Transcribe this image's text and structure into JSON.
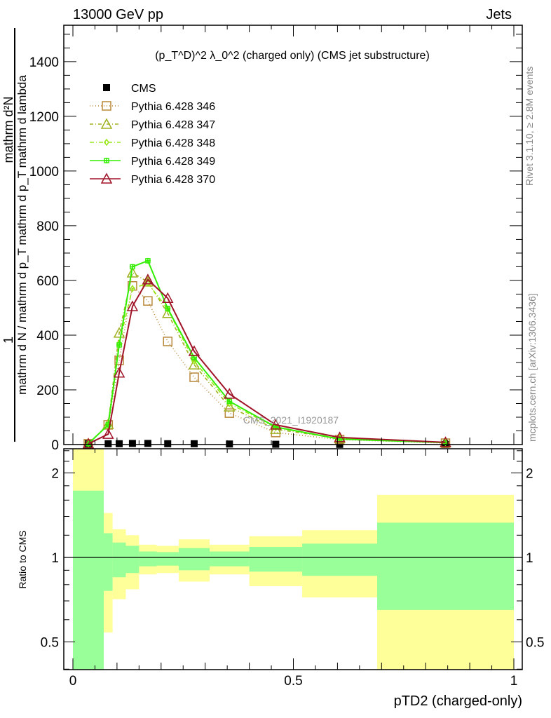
{
  "header": {
    "left": "13000 GeV pp",
    "right": "Jets"
  },
  "side": {
    "rivet": "Rivet 3.1.10, ≥ 2.8M events",
    "mcplots": "mcplots.cern.ch [arXiv:1306.3436]"
  },
  "watermark": "CMS_2021_I1920187",
  "chart_data": [
    {
      "type": "line",
      "title": "(p_T^D)^2 λ_0^2 (charged only) (CMS jet substructure)",
      "title_parts": {
        "pre": "(p",
        "sup1": "D",
        "sub1": "T",
        "mid": ")",
        "sup2": "2",
        "lam": " λ_0",
        "sup3": "2",
        "post": " (charged only) (CMS jet substructure)"
      },
      "ylabel": {
        "num_left": "1",
        "num_right": "mathrm d²N",
        "den": "mathrm d N / mathrm d p_T mathrm d p_T mathrm d lambda"
      },
      "xlabel": "pTD2 (charged-only)",
      "xlim": [
        0,
        1
      ],
      "ylim": [
        0,
        1533
      ],
      "yticks": [
        "0",
        "200",
        "400",
        "600",
        "800",
        "1000",
        "1200",
        "1400"
      ],
      "ytick_values": [
        0,
        200,
        400,
        600,
        800,
        1000,
        1200,
        1400
      ],
      "x": [
        0.035,
        0.08,
        0.105,
        0.135,
        0.17,
        0.215,
        0.275,
        0.355,
        0.46,
        0.605,
        0.845
      ],
      "series": [
        {
          "name": "CMS",
          "color": "#000000",
          "marker": "square-filled",
          "dash": "none",
          "values": [
            3,
            3,
            3,
            4,
            4,
            3,
            3,
            2,
            1,
            0.5,
            0.2
          ]
        },
        {
          "name": "Pythia 6.428 346",
          "color": "#b8883a",
          "marker": "square",
          "dash": "1,3",
          "values": [
            3,
            72,
            308,
            580,
            525,
            377,
            246,
            115,
            44,
            18,
            5
          ]
        },
        {
          "name": "Pythia 6.428 347",
          "color": "#a0b020",
          "marker": "triangle",
          "dash": "5,3,1,3",
          "values": [
            3,
            74,
            408,
            628,
            595,
            480,
            292,
            138,
            56,
            22,
            7
          ]
        },
        {
          "name": "Pythia 6.428 348",
          "color": "#99e81a",
          "marker": "diamond",
          "dash": "6,3,1,3",
          "values": [
            3,
            72,
            370,
            570,
            590,
            495,
            305,
            150,
            62,
            22,
            7
          ]
        },
        {
          "name": "Pythia 6.428 349",
          "color": "#33ee00",
          "marker": "cross",
          "dash": "none",
          "values": [
            3,
            72,
            364,
            650,
            672,
            497,
            318,
            158,
            64,
            20,
            7
          ]
        },
        {
          "name": "Pythia 6.428 370",
          "color": "#a01428",
          "marker": "triangle",
          "dash": "none",
          "values": [
            3,
            38,
            262,
            505,
            603,
            535,
            341,
            185,
            72,
            26,
            8
          ]
        }
      ]
    },
    {
      "type": "area",
      "ylabel": "Ratio to CMS",
      "yscale": "log",
      "ylim": [
        0.4,
        2.44
      ],
      "yticks": [
        "0.5",
        "1",
        "2"
      ],
      "ytick_values": [
        0.5,
        1,
        2
      ],
      "xticks": [
        "0",
        "0.5",
        "1"
      ],
      "xtick_values": [
        0,
        0.5,
        1
      ],
      "bin_edges": [
        0,
        0.07,
        0.09,
        0.12,
        0.15,
        0.19,
        0.24,
        0.31,
        0.4,
        0.52,
        0.69,
        1.0
      ],
      "green_band": {
        "color": "#99ff99",
        "upper": [
          1.73,
          1.22,
          1.13,
          1.1,
          1.05,
          1.045,
          1.08,
          1.05,
          1.09,
          1.12,
          1.33
        ],
        "lower": [
          0.3,
          0.76,
          0.85,
          0.88,
          0.93,
          0.935,
          0.9,
          0.93,
          0.89,
          0.86,
          0.65
        ]
      },
      "yellow_band": {
        "color": "#ffff99",
        "upper": [
          3,
          1.44,
          1.26,
          1.2,
          1.11,
          1.1,
          1.16,
          1.11,
          1.19,
          1.25,
          1.67
        ],
        "lower": [
          0.3,
          0.54,
          0.71,
          0.77,
          0.87,
          0.88,
          0.82,
          0.87,
          0.79,
          0.72,
          0.3
        ]
      }
    }
  ]
}
